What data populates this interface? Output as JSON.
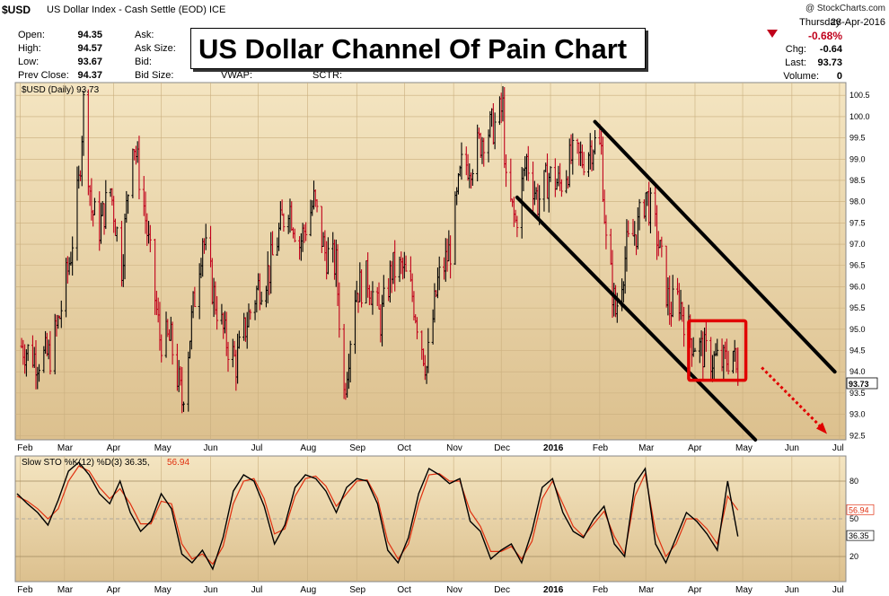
{
  "header": {
    "symbol": "$USD",
    "name": "US Dollar Index - Cash Settle (EOD) ICE",
    "brand": "@ StockCharts.com",
    "weekday": "Thursday",
    "date": "28-Apr-2016",
    "change_pct": "-0.68%",
    "chg_label": "Chg:",
    "chg_value": "-0.64",
    "last_label": "Last:",
    "last_value": "93.73",
    "volume_label": "Volume:",
    "volume_value": "0"
  },
  "quote": {
    "open_label": "Open:",
    "open": "94.35",
    "high_label": "High:",
    "high": "94.57",
    "low_label": "Low:",
    "low": "93.67",
    "prev_label": "Prev Close:",
    "prev": "94.37",
    "ask_label": "Ask:",
    "asksize_label": "Ask Size:",
    "bid_label": "Bid:",
    "bidsize_label": "Bid Size:",
    "vwap_label": "VWAP:",
    "sctr_label": "SCTR:"
  },
  "title_box": "US Dollar Channel Of Pain Chart",
  "colors": {
    "panel_top": "#f4e5c1",
    "panel_bottom": "#dcc08e",
    "up_bar": "#000000",
    "down_bar": "#c0001b",
    "stoch_d": "#e03010",
    "box": "#e00000",
    "arrow": "#e00000"
  },
  "chart_data": [
    {
      "type": "ohlc",
      "legend": "$USD (Daily) 93.73",
      "last_value_tag": "93.73",
      "y_ticks": [
        "92.5",
        "93.0",
        "93.5",
        "94.0",
        "94.5",
        "95.0",
        "95.5",
        "96.0",
        "96.5",
        "97.0",
        "97.5",
        "98.0",
        "98.5",
        "99.0",
        "99.5",
        "100.0",
        "100.5"
      ],
      "ylim": [
        92.4,
        100.8
      ],
      "x_labels": [
        "Feb",
        "Mar",
        "Apr",
        "May",
        "Jun",
        "Jul",
        "Aug",
        "Sep",
        "Oct",
        "Nov",
        "Dec",
        "2016",
        "Feb",
        "Mar",
        "Apr",
        "May",
        "Jun",
        "Jul"
      ],
      "closes": [
        {
          "date": "2015-02-02",
          "close": 94.6
        },
        {
          "date": "2015-02-12",
          "close": 94.3
        },
        {
          "date": "2015-02-20",
          "close": 94.4
        },
        {
          "date": "2015-02-26",
          "close": 95.3
        },
        {
          "date": "2015-03-05",
          "close": 96.8
        },
        {
          "date": "2015-03-10",
          "close": 98.4
        },
        {
          "date": "2015-03-13",
          "close": 100.3
        },
        {
          "date": "2015-03-18",
          "close": 97.8
        },
        {
          "date": "2015-03-23",
          "close": 97.4
        },
        {
          "date": "2015-03-30",
          "close": 98.3
        },
        {
          "date": "2015-04-06",
          "close": 96.5
        },
        {
          "date": "2015-04-13",
          "close": 99.6
        },
        {
          "date": "2015-04-20",
          "close": 97.9
        },
        {
          "date": "2015-04-30",
          "close": 94.8
        },
        {
          "date": "2015-05-07",
          "close": 94.7
        },
        {
          "date": "2015-05-14",
          "close": 93.3
        },
        {
          "date": "2015-05-21",
          "close": 95.5
        },
        {
          "date": "2015-05-27",
          "close": 97.2
        },
        {
          "date": "2015-06-03",
          "close": 95.8
        },
        {
          "date": "2015-06-10",
          "close": 94.8
        },
        {
          "date": "2015-06-17",
          "close": 94.2
        },
        {
          "date": "2015-06-24",
          "close": 95.2
        },
        {
          "date": "2015-07-01",
          "close": 96.0
        },
        {
          "date": "2015-07-08",
          "close": 96.4
        },
        {
          "date": "2015-07-15",
          "close": 97.4
        },
        {
          "date": "2015-07-20",
          "close": 98.0
        },
        {
          "date": "2015-07-27",
          "close": 97.0
        },
        {
          "date": "2015-08-05",
          "close": 98.0
        },
        {
          "date": "2015-08-12",
          "close": 96.8
        },
        {
          "date": "2015-08-19",
          "close": 96.5
        },
        {
          "date": "2015-08-24",
          "close": 93.5
        },
        {
          "date": "2015-08-31",
          "close": 95.9
        },
        {
          "date": "2015-09-08",
          "close": 96.2
        },
        {
          "date": "2015-09-16",
          "close": 95.2
        },
        {
          "date": "2015-09-23",
          "close": 96.4
        },
        {
          "date": "2015-09-30",
          "close": 96.4
        },
        {
          "date": "2015-10-06",
          "close": 95.8
        },
        {
          "date": "2015-10-15",
          "close": 94.1
        },
        {
          "date": "2015-10-22",
          "close": 96.1
        },
        {
          "date": "2015-10-30",
          "close": 96.9
        },
        {
          "date": "2015-11-06",
          "close": 98.8
        },
        {
          "date": "2015-11-13",
          "close": 99.0
        },
        {
          "date": "2015-11-20",
          "close": 99.6
        },
        {
          "date": "2015-11-27",
          "close": 99.8
        },
        {
          "date": "2015-12-02",
          "close": 100.2
        },
        {
          "date": "2015-12-04",
          "close": 98.3
        },
        {
          "date": "2015-12-10",
          "close": 97.5
        },
        {
          "date": "2015-12-17",
          "close": 99.0
        },
        {
          "date": "2015-12-24",
          "close": 98.0
        },
        {
          "date": "2015-12-31",
          "close": 98.6
        },
        {
          "date": "2016-01-07",
          "close": 98.4
        },
        {
          "date": "2016-01-14",
          "close": 99.0
        },
        {
          "date": "2016-01-21",
          "close": 99.0
        },
        {
          "date": "2016-01-28",
          "close": 99.4
        },
        {
          "date": "2016-02-02",
          "close": 99.2
        },
        {
          "date": "2016-02-05",
          "close": 97.0
        },
        {
          "date": "2016-02-11",
          "close": 95.4
        },
        {
          "date": "2016-02-18",
          "close": 96.9
        },
        {
          "date": "2016-02-25",
          "close": 97.4
        },
        {
          "date": "2016-03-01",
          "close": 98.2
        },
        {
          "date": "2016-03-08",
          "close": 97.2
        },
        {
          "date": "2016-03-16",
          "close": 95.5
        },
        {
          "date": "2016-03-22",
          "close": 95.7
        },
        {
          "date": "2016-03-29",
          "close": 94.8
        },
        {
          "date": "2016-04-05",
          "close": 94.5
        },
        {
          "date": "2016-04-12",
          "close": 94.3
        },
        {
          "date": "2016-04-19",
          "close": 94.2
        },
        {
          "date": "2016-04-25",
          "close": 94.5
        },
        {
          "date": "2016-04-28",
          "close": 93.73
        }
      ]
    },
    {
      "type": "line",
      "legend_label": "Slow STO %K(12) %D(3) 36.35,",
      "legend_value": "56.94",
      "k_tag": "36.35",
      "d_tag": "56.94",
      "y_ticks": [
        "20",
        "50",
        "80"
      ],
      "ylim": [
        0,
        100
      ],
      "series": [
        {
          "name": "%K",
          "values": [
            70,
            62,
            55,
            45,
            65,
            88,
            95,
            85,
            70,
            62,
            80,
            55,
            40,
            48,
            70,
            58,
            22,
            15,
            25,
            10,
            35,
            72,
            85,
            80,
            60,
            30,
            45,
            75,
            85,
            82,
            72,
            55,
            75,
            82,
            80,
            62,
            25,
            15,
            35,
            70,
            90,
            85,
            78,
            82,
            48,
            40,
            18,
            25,
            30,
            15,
            40,
            75,
            82,
            55,
            40,
            35,
            50,
            60,
            30,
            20,
            78,
            90,
            30,
            15,
            35,
            55,
            48,
            38,
            25,
            80,
            36
          ]
        },
        {
          "name": "%D",
          "values": [
            68,
            64,
            58,
            50,
            58,
            80,
            92,
            88,
            75,
            66,
            74,
            62,
            46,
            46,
            64,
            62,
            30,
            18,
            22,
            14,
            28,
            62,
            80,
            82,
            66,
            38,
            42,
            68,
            82,
            84,
            76,
            60,
            70,
            80,
            81,
            66,
            32,
            18,
            30,
            62,
            85,
            86,
            80,
            80,
            56,
            44,
            24,
            24,
            28,
            18,
            32,
            66,
            80,
            62,
            44,
            36,
            46,
            56,
            36,
            22,
            68,
            86,
            40,
            20,
            30,
            50,
            50,
            42,
            30,
            68,
            56.94
          ]
        }
      ]
    }
  ]
}
